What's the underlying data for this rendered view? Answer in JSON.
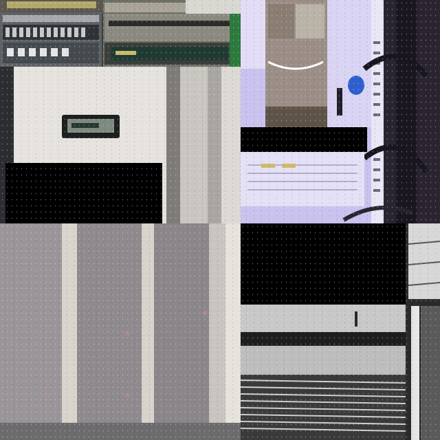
{
  "image": {
    "description_tiles": [
      {
        "name": "top-left-server-rack-equipment"
      },
      {
        "name": "top-right-purple-server-cabinet"
      },
      {
        "name": "mid-left-wall-panel-display"
      },
      {
        "name": "bottom-left-grey-cabinet-door"
      },
      {
        "name": "bottom-right-rack-chassis-vents"
      }
    ],
    "colors": {
      "purple_tint": "#c9c2ef",
      "grey_cabinet": "#8e8b8e",
      "panel_white": "#e6e3df",
      "lcd_green": "#26362c",
      "blue_part": "#2f5fcf"
    }
  }
}
